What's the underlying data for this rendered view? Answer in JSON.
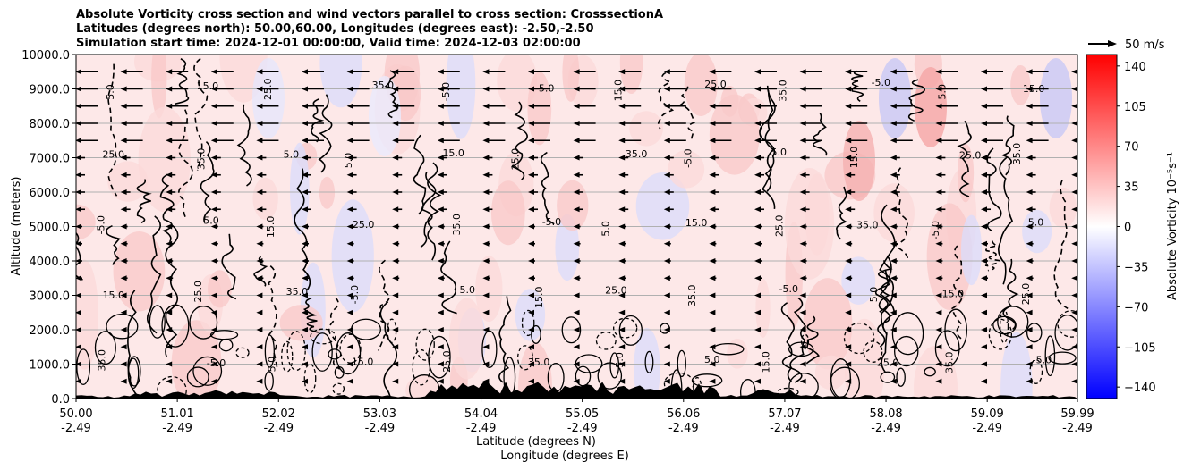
{
  "chart_data": {
    "type": "heatmap",
    "title_lines": [
      "Absolute Vorticity cross section and wind vectors parallel to cross section: CrosssectionA",
      "Latitudes (degrees north): 50.00,60.00, Longitudes (degrees east): -2.50,-2.50",
      "Simulation start time: 2024-12-01 00:00:00, Valid time: 2024-12-03 02:00:00"
    ],
    "ylabel": "Altitude (meters)",
    "xlabel_lines": [
      "Latitude (degrees N)",
      "Longitude (degrees E)"
    ],
    "ylim": [
      0,
      10000
    ],
    "xlim": [
      50.0,
      59.99
    ],
    "yticks": [
      "0.0",
      "1000.0",
      "2000.0",
      "3000.0",
      "4000.0",
      "5000.0",
      "6000.0",
      "7000.0",
      "8000.0",
      "9000.0",
      "10000.0"
    ],
    "xticks": [
      {
        "lat": "50.00",
        "lon": "-2.49"
      },
      {
        "lat": "51.01",
        "lon": "-2.49"
      },
      {
        "lat": "52.02",
        "lon": "-2.49"
      },
      {
        "lat": "53.03",
        "lon": "-2.49"
      },
      {
        "lat": "54.04",
        "lon": "-2.49"
      },
      {
        "lat": "55.05",
        "lon": "-2.49"
      },
      {
        "lat": "56.06",
        "lon": "-2.49"
      },
      {
        "lat": "57.07",
        "lon": "-2.49"
      },
      {
        "lat": "58.08",
        "lon": "-2.49"
      },
      {
        "lat": "59.09",
        "lon": "-2.49"
      },
      {
        "lat": "59.99",
        "lon": "-2.49"
      }
    ],
    "grid": "horizontal",
    "colorbar": {
      "label": "Absolute Vorticity 10⁻⁵s⁻¹",
      "range": [
        -150,
        150
      ],
      "ticks": [
        "140",
        "105",
        "70",
        "35",
        "0",
        "−35",
        "−70",
        "−105",
        "−140"
      ],
      "tick_values": [
        140,
        105,
        70,
        35,
        0,
        -35,
        -70,
        -105,
        -140
      ],
      "colormap": "bwr"
    },
    "quiver_key": {
      "label": "50 m/s",
      "value": 50
    },
    "contour_levels": [
      "5.0",
      "15.0",
      "25.0",
      "35.0",
      "-5.0"
    ],
    "wind_direction": "southward (leftward arrows), strongest aloft",
    "colors": {
      "positive": "#ff0000",
      "negative": "#0000ff",
      "background": "#fde6e6",
      "terrain": "#000000"
    }
  }
}
